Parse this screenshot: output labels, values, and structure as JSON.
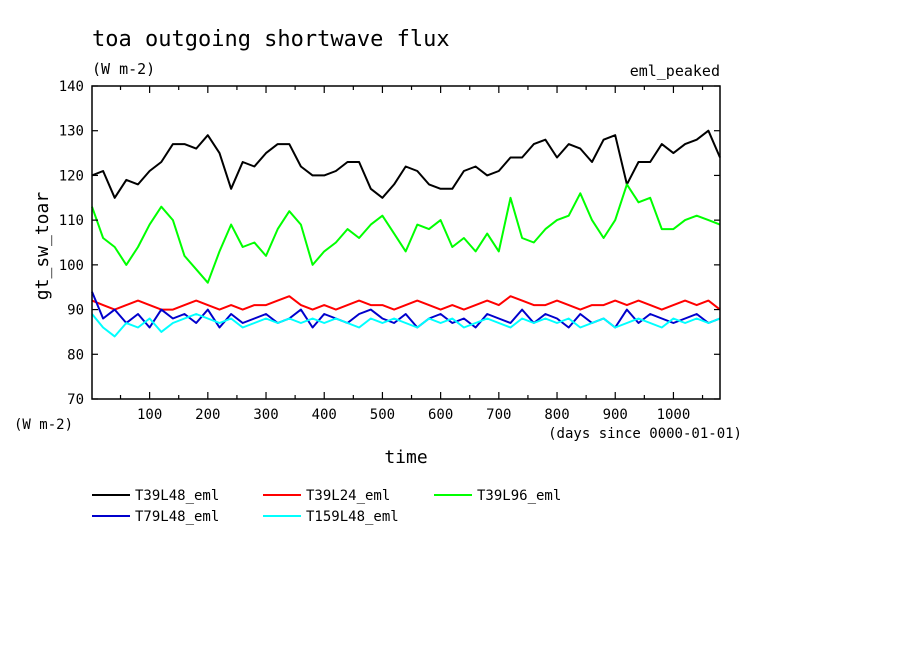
{
  "chart_data": {
    "type": "line",
    "title": "toa outgoing shortwave flux",
    "units_label": "(W m-2)",
    "experiment_label": "eml_peaked",
    "ylabel": "gt_sw_toar",
    "y_units_label": "(W m-2)",
    "xlabel": "time",
    "x_units_label": "(days since 0000-01-01)",
    "xlim": [
      1,
      1080
    ],
    "ylim": [
      70,
      140
    ],
    "x_ticks": [
      100,
      200,
      300,
      400,
      500,
      600,
      700,
      800,
      900,
      1000
    ],
    "y_ticks": [
      70,
      80,
      90,
      100,
      110,
      120,
      130,
      140
    ],
    "legend_position": "bottom-left",
    "series": [
      {
        "name": "T39L48_eml",
        "color": "#000000",
        "x": [
          1,
          20,
          40,
          60,
          80,
          100,
          120,
          140,
          160,
          180,
          200,
          220,
          240,
          260,
          280,
          300,
          320,
          340,
          360,
          380,
          400,
          420,
          440,
          460,
          480,
          500,
          520,
          540,
          560,
          580,
          600,
          620,
          640,
          660,
          680,
          700,
          720,
          740,
          760,
          780,
          800,
          820,
          840,
          860,
          880,
          900,
          920,
          940,
          960,
          980,
          1000,
          1020,
          1040,
          1060,
          1080
        ],
        "values": [
          120,
          121,
          115,
          119,
          118,
          121,
          123,
          127,
          127,
          126,
          129,
          125,
          117,
          123,
          122,
          125,
          127,
          127,
          122,
          120,
          120,
          121,
          123,
          123,
          117,
          115,
          118,
          122,
          121,
          118,
          117,
          117,
          121,
          122,
          120,
          121,
          124,
          124,
          127,
          128,
          124,
          127,
          126,
          123,
          128,
          129,
          118,
          123,
          123,
          127,
          125,
          127,
          128,
          130,
          124
        ]
      },
      {
        "name": "T39L24_eml",
        "color": "#ff0000",
        "x": [
          1,
          20,
          40,
          60,
          80,
          100,
          120,
          140,
          160,
          180,
          200,
          220,
          240,
          260,
          280,
          300,
          320,
          340,
          360,
          380,
          400,
          420,
          440,
          460,
          480,
          500,
          520,
          540,
          560,
          580,
          600,
          620,
          640,
          660,
          680,
          700,
          720,
          740,
          760,
          780,
          800,
          820,
          840,
          860,
          880,
          900,
          920,
          940,
          960,
          980,
          1000,
          1020,
          1040,
          1060,
          1080
        ],
        "values": [
          92,
          91,
          90,
          91,
          92,
          91,
          90,
          90,
          91,
          92,
          91,
          90,
          91,
          90,
          91,
          91,
          92,
          93,
          91,
          90,
          91,
          90,
          91,
          92,
          91,
          91,
          90,
          91,
          92,
          91,
          90,
          91,
          90,
          91,
          92,
          91,
          93,
          92,
          91,
          91,
          92,
          91,
          90,
          91,
          91,
          92,
          91,
          92,
          91,
          90,
          91,
          92,
          91,
          92,
          90
        ]
      },
      {
        "name": "T39L96_eml",
        "color": "#00ff00",
        "x": [
          1,
          20,
          40,
          60,
          80,
          100,
          120,
          140,
          160,
          180,
          200,
          220,
          240,
          260,
          280,
          300,
          320,
          340,
          360,
          380,
          400,
          420,
          440,
          460,
          480,
          500,
          520,
          540,
          560,
          580,
          600,
          620,
          640,
          660,
          680,
          700,
          720,
          740,
          760,
          780,
          800,
          820,
          840,
          860,
          880,
          900,
          920,
          940,
          960,
          980,
          1000,
          1020,
          1040,
          1060,
          1080
        ],
        "values": [
          113,
          106,
          104,
          100,
          104,
          109,
          113,
          110,
          102,
          99,
          96,
          103,
          109,
          104,
          105,
          102,
          108,
          112,
          109,
          100,
          103,
          105,
          108,
          106,
          109,
          111,
          107,
          103,
          109,
          108,
          110,
          104,
          106,
          103,
          107,
          103,
          115,
          106,
          105,
          108,
          110,
          111,
          116,
          110,
          106,
          110,
          118,
          114,
          115,
          108,
          108,
          110,
          111,
          110,
          109
        ]
      },
      {
        "name": "T79L48_eml",
        "color": "#0000cc",
        "x": [
          1,
          20,
          40,
          60,
          80,
          100,
          120,
          140,
          160,
          180,
          200,
          220,
          240,
          260,
          280,
          300,
          320,
          340,
          360,
          380,
          400,
          420,
          440,
          460,
          480,
          500,
          520,
          540,
          560,
          580,
          600,
          620,
          640,
          660,
          680,
          700,
          720,
          740,
          760,
          780,
          800,
          820,
          840,
          860,
          880,
          900,
          920,
          940,
          960,
          980,
          1000,
          1020,
          1040,
          1060,
          1080
        ],
        "values": [
          94,
          88,
          90,
          87,
          89,
          86,
          90,
          88,
          89,
          87,
          90,
          86,
          89,
          87,
          88,
          89,
          87,
          88,
          90,
          86,
          89,
          88,
          87,
          89,
          90,
          88,
          87,
          89,
          86,
          88,
          89,
          87,
          88,
          86,
          89,
          88,
          87,
          90,
          87,
          89,
          88,
          86,
          89,
          87,
          88,
          86,
          90,
          87,
          89,
          88,
          87,
          88,
          89,
          87,
          88
        ]
      },
      {
        "name": "T159L48_eml",
        "color": "#00ffff",
        "x": [
          1,
          20,
          40,
          60,
          80,
          100,
          120,
          140,
          160,
          180,
          200,
          220,
          240,
          260,
          280,
          300,
          320,
          340,
          360,
          380,
          400,
          420,
          440,
          460,
          480,
          500,
          520,
          540,
          560,
          580,
          600,
          620,
          640,
          660,
          680,
          700,
          720,
          740,
          760,
          780,
          800,
          820,
          840,
          860,
          880,
          900,
          920,
          940,
          960,
          980,
          1000,
          1020,
          1040,
          1060,
          1080
        ],
        "values": [
          89,
          86,
          84,
          87,
          86,
          88,
          85,
          87,
          88,
          89,
          88,
          87,
          88,
          86,
          87,
          88,
          87,
          88,
          87,
          88,
          87,
          88,
          87,
          86,
          88,
          87,
          88,
          87,
          86,
          88,
          87,
          88,
          86,
          87,
          88,
          87,
          86,
          88,
          87,
          88,
          87,
          88,
          86,
          87,
          88,
          86,
          87,
          88,
          87,
          86,
          88,
          87,
          88,
          87,
          88
        ]
      }
    ]
  }
}
